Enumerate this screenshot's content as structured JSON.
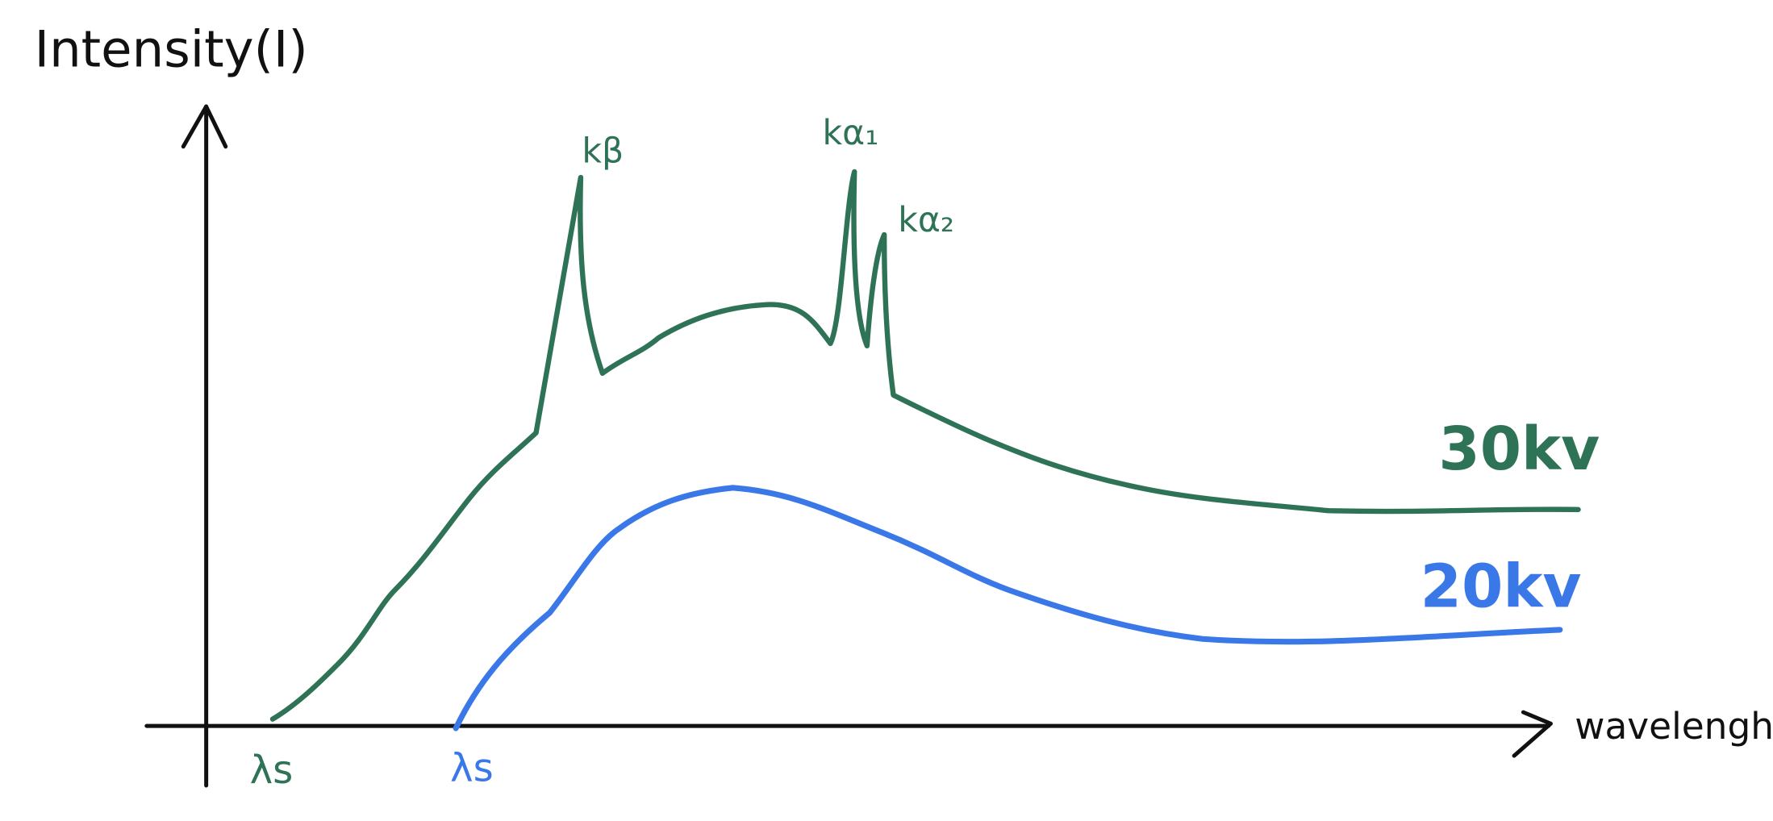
{
  "axes": {
    "y_label": "Intensity(I)",
    "x_label": "wavelengh"
  },
  "peaks": [
    "kβ",
    "kα₁",
    "kα₂"
  ],
  "curves": [
    {
      "label": "30kv",
      "origin_label": "λs"
    },
    {
      "label": "20kv",
      "origin_label": "λs"
    }
  ]
}
